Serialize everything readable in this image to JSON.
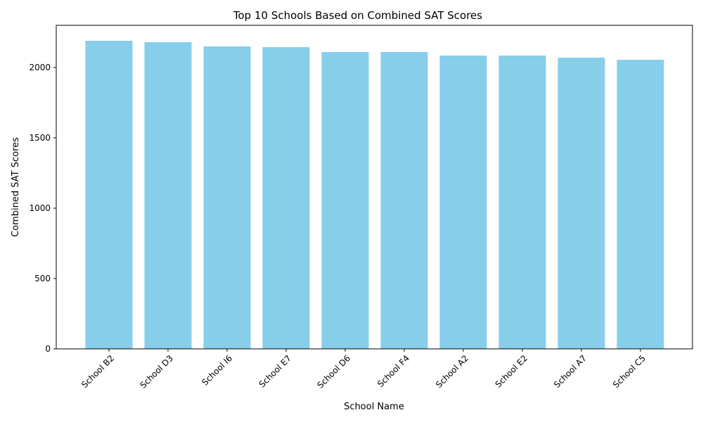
{
  "chart_data": {
    "type": "bar",
    "title": "Top 10 Schools Based on Combined SAT Scores",
    "xlabel": "School Name",
    "ylabel": "Combined SAT Scores",
    "categories": [
      "School B2",
      "School D3",
      "School I6",
      "School E7",
      "School D6",
      "School F4",
      "School A2",
      "School E2",
      "School A7",
      "School C5"
    ],
    "values": [
      2190,
      2180,
      2150,
      2145,
      2110,
      2110,
      2085,
      2085,
      2070,
      2055
    ],
    "ylim": [
      0,
      2300
    ],
    "yticks": [
      0,
      500,
      1000,
      1500,
      2000
    ],
    "bar_color": "#87ceeb",
    "grid": false,
    "legend": "none"
  }
}
